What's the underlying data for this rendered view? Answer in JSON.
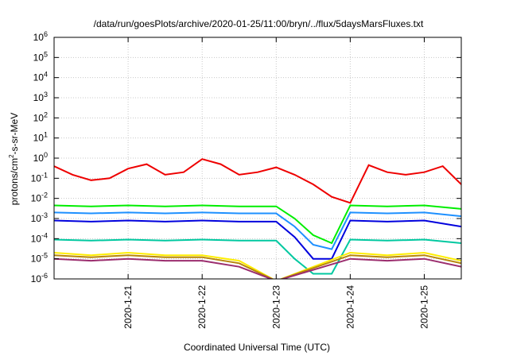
{
  "chart_data": {
    "type": "line",
    "title": "/data/run/goesPlots/archive/2020-01-25/11:00/bryn/../flux/5daysMarsFluxes.txt",
    "xlabel": "Coordinated Universal Time (UTC)",
    "ylabel": {
      "pre": "protons/cm",
      "sup": "2",
      "post": "-s-sr-MeV"
    },
    "x_scale": "time",
    "x_range": [
      "2020-01-20 00:00",
      "2020-01-25 12:00"
    ],
    "x_ticks": [
      "2020-1-21",
      "2020-1-22",
      "2020-1-23",
      "2020-1-24",
      "2020-1-25"
    ],
    "y_scale": "log",
    "y_range": [
      1e-06,
      1000000.0
    ],
    "y_ticks": [
      {
        "base": "10",
        "exp": "-6"
      },
      {
        "base": "10",
        "exp": "-5"
      },
      {
        "base": "10",
        "exp": "-4"
      },
      {
        "base": "10",
        "exp": "-3"
      },
      {
        "base": "10",
        "exp": "-2"
      },
      {
        "base": "10",
        "exp": "-1"
      },
      {
        "base": "10",
        "exp": "0"
      },
      {
        "base": "10",
        "exp": "1"
      },
      {
        "base": "10",
        "exp": "2"
      },
      {
        "base": "10",
        "exp": "3"
      },
      {
        "base": "10",
        "exp": "4"
      },
      {
        "base": "10",
        "exp": "5"
      },
      {
        "base": "10",
        "exp": "6"
      }
    ],
    "grid": true,
    "series": [
      {
        "color": "#ee0000",
        "x": [
          "2020-01-20 00:00",
          "2020-01-20 06:00",
          "2020-01-20 12:00",
          "2020-01-20 18:00",
          "2020-01-21 00:00",
          "2020-01-21 06:00",
          "2020-01-21 12:00",
          "2020-01-21 18:00",
          "2020-01-22 00:00",
          "2020-01-22 06:00",
          "2020-01-22 12:00",
          "2020-01-22 18:00",
          "2020-01-23 00:00",
          "2020-01-23 06:00",
          "2020-01-23 12:00",
          "2020-01-23 18:00",
          "2020-01-24 00:00",
          "2020-01-24 06:00",
          "2020-01-24 12:00",
          "2020-01-24 18:00",
          "2020-01-25 00:00",
          "2020-01-25 06:00",
          "2020-01-25 12:00"
        ],
        "y": [
          0.4,
          0.15,
          0.08,
          0.1,
          0.3,
          0.5,
          0.15,
          0.2,
          0.9,
          0.5,
          0.15,
          0.2,
          0.35,
          0.15,
          0.05,
          0.012,
          0.006,
          0.45,
          0.2,
          0.15,
          0.2,
          0.4,
          0.05
        ]
      },
      {
        "color": "#00ee00",
        "x": [
          "2020-01-20 00:00",
          "2020-01-20 12:00",
          "2020-01-21 00:00",
          "2020-01-21 12:00",
          "2020-01-22 00:00",
          "2020-01-22 12:00",
          "2020-01-23 00:00",
          "2020-01-23 06:00",
          "2020-01-23 12:00",
          "2020-01-23 18:00",
          "2020-01-24 00:00",
          "2020-01-24 12:00",
          "2020-01-25 00:00",
          "2020-01-25 12:00"
        ],
        "y": [
          0.0045,
          0.004,
          0.0045,
          0.004,
          0.0045,
          0.004,
          0.004,
          0.001,
          0.00015,
          6e-05,
          0.0045,
          0.004,
          0.0045,
          0.003
        ]
      },
      {
        "color": "#1e90ff",
        "x": [
          "2020-01-20 00:00",
          "2020-01-20 12:00",
          "2020-01-21 00:00",
          "2020-01-21 12:00",
          "2020-01-22 00:00",
          "2020-01-22 12:00",
          "2020-01-23 00:00",
          "2020-01-23 06:00",
          "2020-01-23 12:00",
          "2020-01-23 18:00",
          "2020-01-24 00:00",
          "2020-01-24 12:00",
          "2020-01-25 00:00",
          "2020-01-25 12:00"
        ],
        "y": [
          0.002,
          0.0018,
          0.002,
          0.0018,
          0.002,
          0.0018,
          0.0018,
          0.0004,
          5e-05,
          3e-05,
          0.002,
          0.0018,
          0.002,
          0.0013
        ]
      },
      {
        "color": "#0000dd",
        "x": [
          "2020-01-20 00:00",
          "2020-01-20 12:00",
          "2020-01-21 00:00",
          "2020-01-21 12:00",
          "2020-01-22 00:00",
          "2020-01-22 12:00",
          "2020-01-23 00:00",
          "2020-01-23 06:00",
          "2020-01-23 12:00",
          "2020-01-23 18:00",
          "2020-01-24 00:00",
          "2020-01-24 12:00",
          "2020-01-25 00:00",
          "2020-01-25 12:00"
        ],
        "y": [
          0.0008,
          0.0007,
          0.0008,
          0.0007,
          0.0008,
          0.0007,
          0.0007,
          0.00012,
          1e-05,
          1e-05,
          0.0008,
          0.0007,
          0.0008,
          0.0004
        ]
      },
      {
        "color": "#00c8a0",
        "x": [
          "2020-01-20 00:00",
          "2020-01-20 12:00",
          "2020-01-21 00:00",
          "2020-01-21 12:00",
          "2020-01-22 00:00",
          "2020-01-22 12:00",
          "2020-01-23 00:00",
          "2020-01-23 06:00",
          "2020-01-23 12:00",
          "2020-01-23 18:00",
          "2020-01-24 00:00",
          "2020-01-24 12:00",
          "2020-01-25 00:00",
          "2020-01-25 12:00"
        ],
        "y": [
          9e-05,
          8e-05,
          9e-05,
          8e-05,
          9e-05,
          8e-05,
          8e-05,
          1e-05,
          1.8e-06,
          1.8e-06,
          9e-05,
          8e-05,
          9e-05,
          6e-05
        ]
      },
      {
        "color": "#ffee00",
        "x": [
          "2020-01-20 00:00",
          "2020-01-20 12:00",
          "2020-01-21 00:00",
          "2020-01-21 12:00",
          "2020-01-22 00:00",
          "2020-01-22 12:00",
          "2020-01-23 00:00",
          "2020-01-24 00:00",
          "2020-01-24 12:00",
          "2020-01-25 00:00",
          "2020-01-25 12:00"
        ],
        "y": [
          2e-05,
          1.5e-05,
          2e-05,
          1.5e-05,
          1.5e-05,
          8e-06,
          8e-07,
          2e-05,
          1.5e-05,
          2e-05,
          8e-06
        ]
      },
      {
        "color": "#b8860b",
        "x": [
          "2020-01-20 00:00",
          "2020-01-20 12:00",
          "2020-01-21 00:00",
          "2020-01-21 12:00",
          "2020-01-22 00:00",
          "2020-01-22 12:00",
          "2020-01-23 00:00",
          "2020-01-24 00:00",
          "2020-01-24 12:00",
          "2020-01-25 00:00",
          "2020-01-25 12:00"
        ],
        "y": [
          1.5e-05,
          1.2e-05,
          1.5e-05,
          1.2e-05,
          1.2e-05,
          6e-06,
          8e-07,
          1.5e-05,
          1.2e-05,
          1.5e-05,
          6e-06
        ]
      },
      {
        "color": "#9b2d6e",
        "x": [
          "2020-01-20 00:00",
          "2020-01-20 12:00",
          "2020-01-21 00:00",
          "2020-01-21 12:00",
          "2020-01-22 00:00",
          "2020-01-22 12:00",
          "2020-01-23 00:00",
          "2020-01-24 00:00",
          "2020-01-24 12:00",
          "2020-01-25 00:00",
          "2020-01-25 12:00"
        ],
        "y": [
          1e-05,
          8e-06,
          1e-05,
          8e-06,
          8e-06,
          4e-06,
          8e-07,
          1e-05,
          8e-06,
          1e-05,
          4e-06
        ]
      }
    ]
  }
}
